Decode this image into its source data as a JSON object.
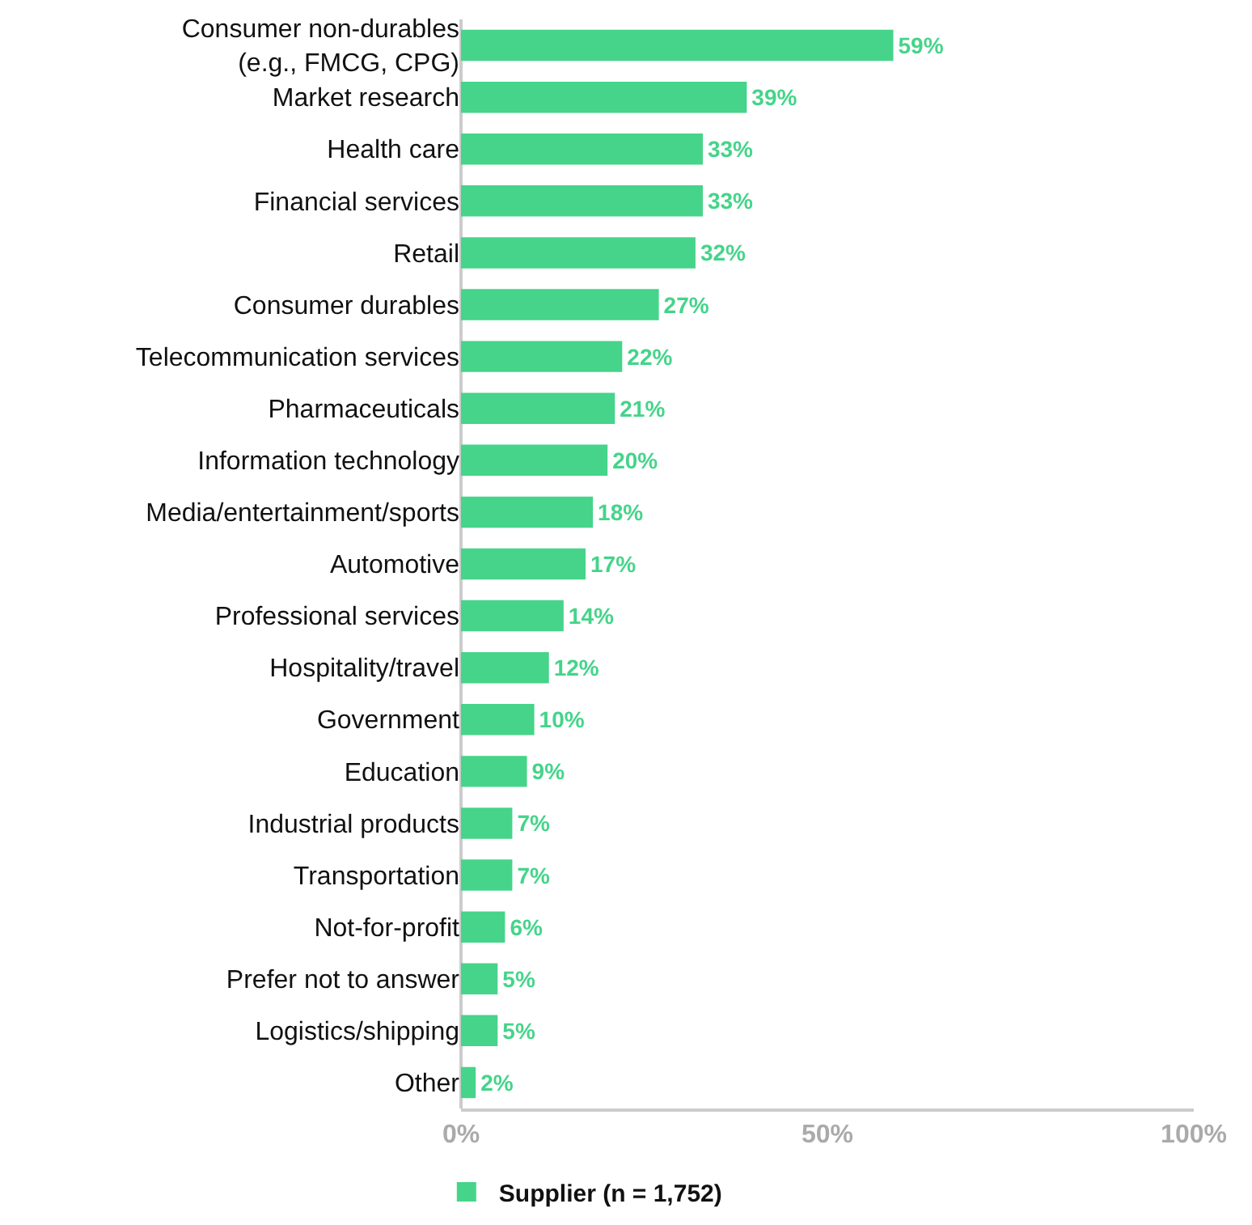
{
  "chart_data": {
    "type": "bar",
    "orientation": "horizontal",
    "categories": [
      "Consumer non-durables\n(e.g., FMCG, CPG)",
      "Market research",
      "Health care",
      "Financial services",
      "Retail",
      "Consumer durables",
      "Telecommunication services",
      "Pharmaceuticals",
      "Information technology",
      "Media/entertainment/sports",
      "Automotive",
      "Professional services",
      "Hospitality/travel",
      "Government",
      "Education",
      "Industrial products",
      "Transportation",
      "Not-for-profit",
      "Prefer not to answer",
      "Logistics/shipping",
      "Other"
    ],
    "series": [
      {
        "name": "Supplier (n = 1,752)",
        "color": "#45d48a",
        "values": [
          59,
          39,
          33,
          33,
          32,
          27,
          22,
          21,
          20,
          18,
          17,
          14,
          12,
          10,
          9,
          7,
          7,
          6,
          5,
          5,
          2
        ],
        "value_labels": [
          "59%",
          "39%",
          "33%",
          "33%",
          "32%",
          "27%",
          "22%",
          "21%",
          "20%",
          "18%",
          "17%",
          "14%",
          "12%",
          "10%",
          "9%",
          "7%",
          "7%",
          "6%",
          "5%",
          "5%",
          "2%"
        ]
      }
    ],
    "xlim": [
      0,
      100
    ],
    "xticks": [
      {
        "value": 0,
        "label": "0%"
      },
      {
        "value": 50,
        "label": "50%"
      },
      {
        "value": 100,
        "label": "100%"
      }
    ],
    "grid": false,
    "legend": "bottom"
  }
}
